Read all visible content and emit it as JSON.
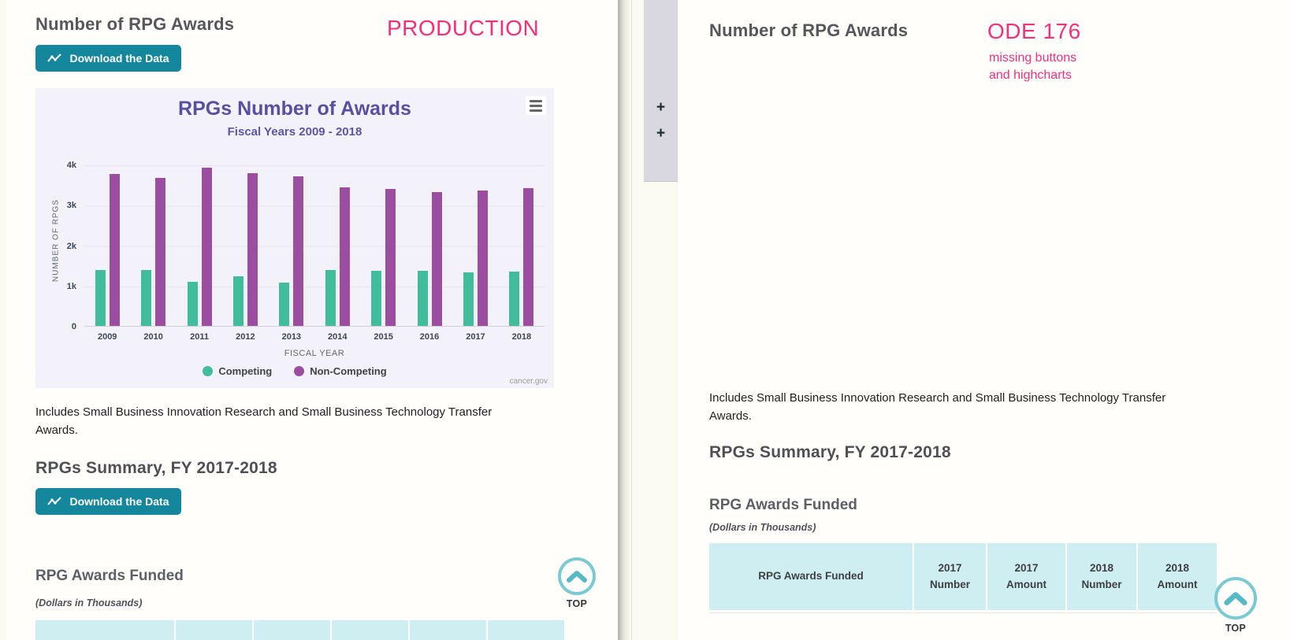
{
  "annotations": {
    "left_label": "PRODUCTION",
    "right_label": "ODE 176",
    "right_note_line1": "missing buttons",
    "right_note_line2": "and highcharts",
    "color": "#f4307a"
  },
  "divider": {
    "zoom_top": "+",
    "zoom_bottom": "+"
  },
  "left_pane": {
    "title": "Number of RPG Awards",
    "download_button_label": "Download the Data",
    "note": "Includes Small Business Innovation Research and Small Business Technology Transfer Awards.",
    "summary_heading": "RPGs Summary, FY 2017-2018",
    "table_heading": "RPG Awards Funded",
    "table_subheading": "(Dollars in Thousands)",
    "top_button": "TOP"
  },
  "right_pane": {
    "title": "Number of RPG Awards",
    "note": "Includes Small Business Innovation Research and Small Business Technology Transfer Awards.",
    "summary_heading": "RPGs Summary, FY 2017-2018",
    "table_heading": "RPG Awards Funded",
    "table_subheading": "(Dollars in Thousands)",
    "table": {
      "headers": [
        "RPG Awards Funded",
        "2017 Number",
        "2017 Amount",
        "2018 Number",
        "2018 Amount"
      ]
    },
    "top_button": "TOP"
  },
  "chart_data": {
    "type": "bar",
    "title": "RPGs Number of Awards",
    "subtitle": "Fiscal Years 2009 - 2018",
    "xlabel": "FISCAL YEAR",
    "ylabel": "NUMBER OF RPGS",
    "categories": [
      "2009",
      "2010",
      "2011",
      "2012",
      "2013",
      "2014",
      "2015",
      "2016",
      "2017",
      "2018"
    ],
    "series": [
      {
        "name": "Competing",
        "color": "#41bd9c",
        "values": [
          1380,
          1390,
          1100,
          1230,
          1080,
          1380,
          1360,
          1370,
          1330,
          1350
        ]
      },
      {
        "name": "Non-Competing",
        "color": "#9b4ea0",
        "values": [
          3770,
          3670,
          3920,
          3780,
          3710,
          3430,
          3400,
          3320,
          3360,
          3420
        ]
      }
    ],
    "ylim": [
      0,
      4000
    ],
    "yticks": [
      "0",
      "1k",
      "2k",
      "3k",
      "4k"
    ],
    "grid": true,
    "legend_position": "bottom",
    "credit": "cancer.gov"
  }
}
